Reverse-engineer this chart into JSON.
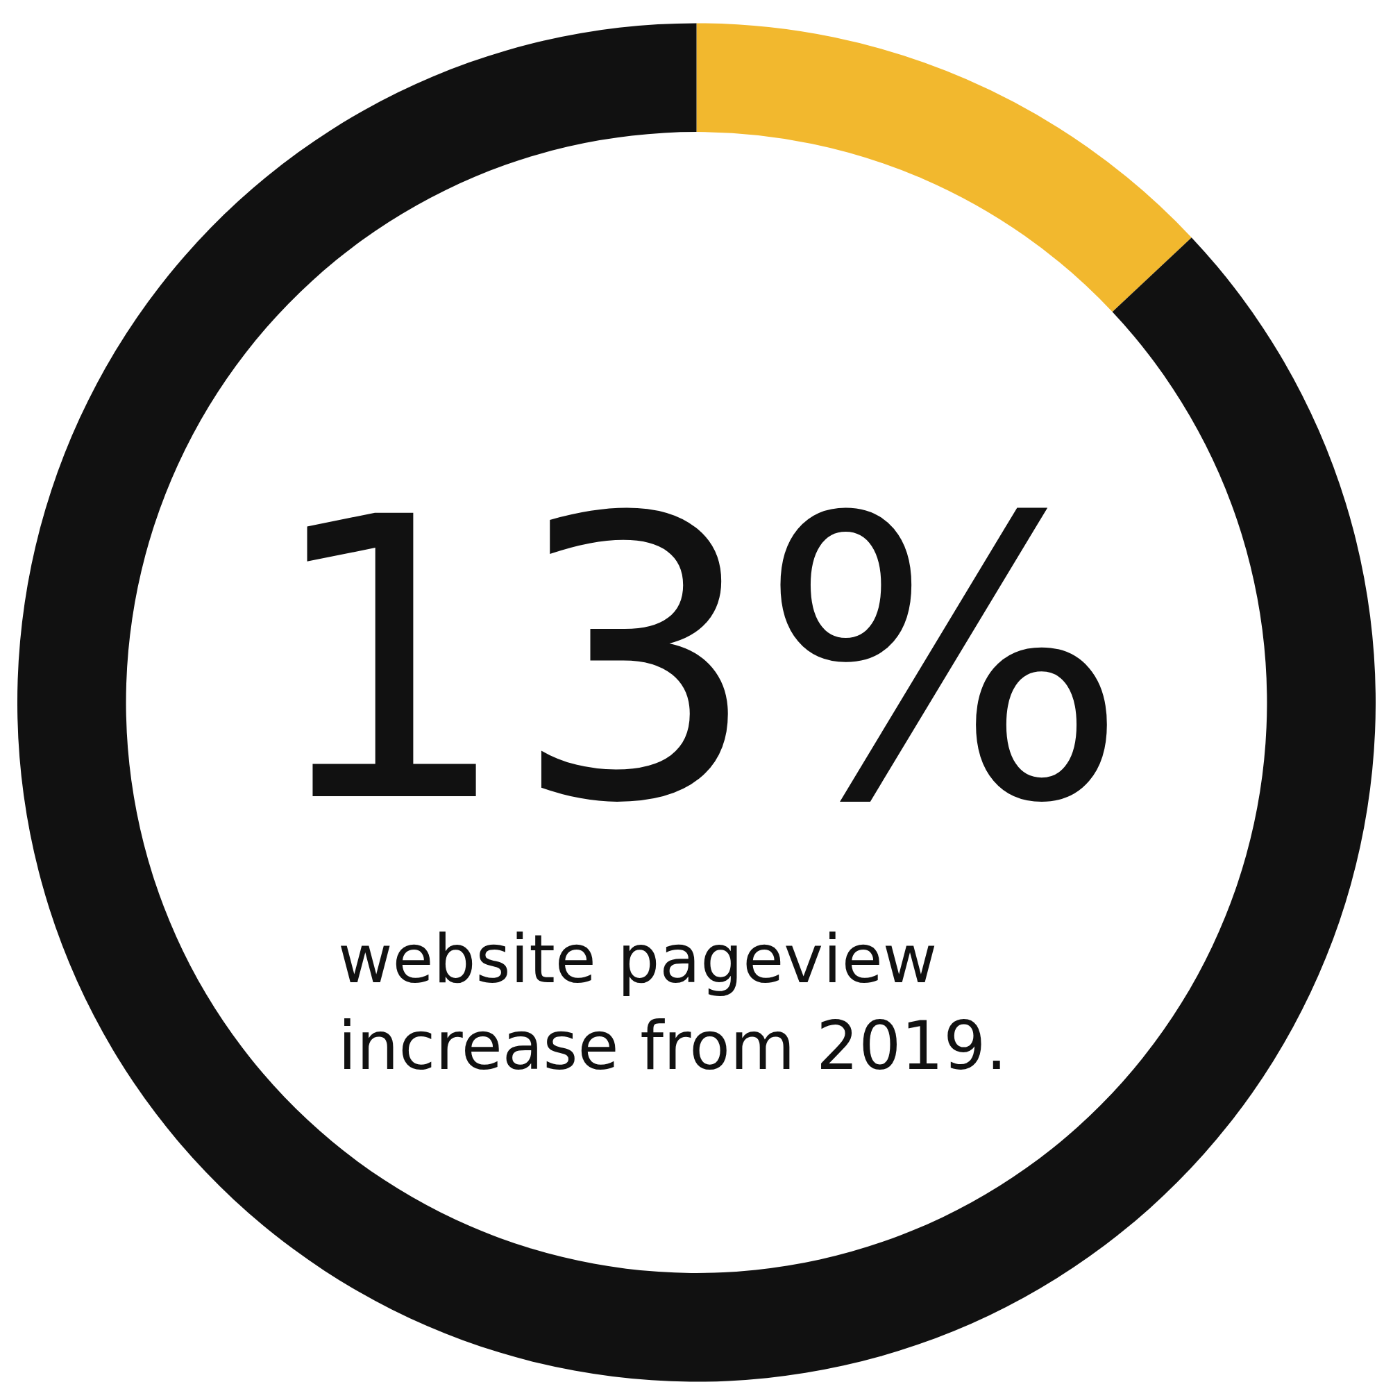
{
  "chart_data": {
    "type": "donut",
    "categories": [
      null,
      null
    ],
    "values": [
      13,
      87
    ],
    "colors": [
      "#f2b82e",
      "#111111"
    ],
    "annotations": [
      "13%",
      "website pageview\nincrease from 2019."
    ]
  }
}
